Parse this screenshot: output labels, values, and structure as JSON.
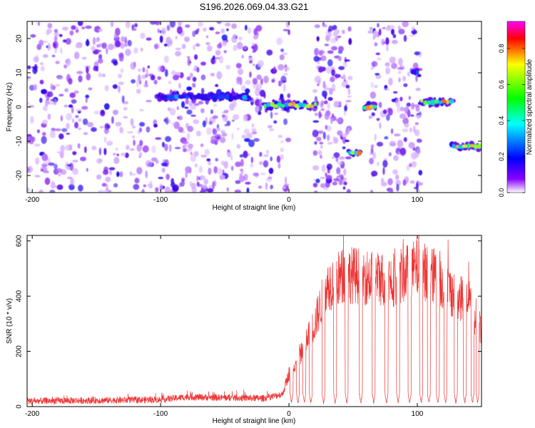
{
  "figure_title": "S196.2026.069.04.33.G21",
  "chart_data": [
    {
      "type": "heatmap",
      "title": "S196.2026.069.04.33.G21",
      "xlabel": "Height of straight line (km)",
      "ylabel": "Frequency (Hz)",
      "xlim": [
        -204,
        150
      ],
      "ylim": [
        -25,
        25
      ],
      "xticks": [
        -200,
        -100,
        0,
        100
      ],
      "yticks": [
        -20,
        -10,
        0,
        10,
        20
      ],
      "colorbar": {
        "label": "Normalized spectral amplitude",
        "range": [
          0.0,
          0.95
        ],
        "ticks": [
          0.0,
          0.2,
          0.4,
          0.6,
          0.8
        ],
        "colormap": [
          "#ff00ff",
          "#ff0000",
          "#ffff00",
          "#00ff00",
          "#00ffff",
          "#0000ff",
          "#8800ff",
          "#ffffff"
        ]
      },
      "noise_regions": [
        {
          "x_range": [
            -204,
            -18
          ],
          "density": "high",
          "freq_range": [
            -25,
            25
          ]
        },
        {
          "x_range": [
            -18,
            0
          ],
          "density": "low",
          "freq_range": [
            -25,
            25
          ]
        },
        {
          "x_range": [
            20,
            48
          ],
          "density": "medium",
          "freq_range": [
            -25,
            25
          ]
        },
        {
          "x_range": [
            63,
            103
          ],
          "density": "medium",
          "freq_range": [
            -25,
            25
          ]
        }
      ],
      "features": [
        {
          "x_range": [
            -103,
            -30
          ],
          "freq": 3,
          "amplitude": 0.5
        },
        {
          "x_range": [
            -20,
            22
          ],
          "freq": 0.5,
          "amplitude": 0.85
        },
        {
          "x_range": [
            46,
            56
          ],
          "freq": -13.5,
          "amplitude": 0.85
        },
        {
          "x_range": [
            58,
            68
          ],
          "freq": 0,
          "amplitude": 0.9
        },
        {
          "x_range": [
            96,
            101
          ],
          "freq": 10,
          "amplitude": 0.5
        },
        {
          "x_range": [
            102,
            128
          ],
          "freq": 1.5,
          "amplitude": 0.85
        },
        {
          "x_range": [
            127,
            150
          ],
          "freq": -11.5,
          "amplitude": 0.8
        }
      ]
    },
    {
      "type": "line",
      "title": "",
      "xlabel": "Height of straight line (km)",
      "ylabel": "SNR (10 * v/v)",
      "xlim": [
        -204,
        150
      ],
      "ylim": [
        0,
        620
      ],
      "xticks": [
        -200,
        -100,
        0,
        100
      ],
      "yticks": [
        0,
        200,
        400,
        600
      ],
      "color": "#ee3333",
      "profile": [
        {
          "x": -204,
          "y": 20
        },
        {
          "x": -100,
          "y": 25
        },
        {
          "x": -80,
          "y": 35
        },
        {
          "x": -20,
          "y": 30
        },
        {
          "x": -5,
          "y": 45
        },
        {
          "x": 0,
          "y": 120
        },
        {
          "x": 10,
          "y": 200
        },
        {
          "x": 20,
          "y": 300
        },
        {
          "x": 30,
          "y": 440
        },
        {
          "x": 45,
          "y": 480
        },
        {
          "x": 60,
          "y": 470
        },
        {
          "x": 80,
          "y": 460
        },
        {
          "x": 100,
          "y": 500
        },
        {
          "x": 115,
          "y": 470
        },
        {
          "x": 125,
          "y": 420
        },
        {
          "x": 140,
          "y": 380
        },
        {
          "x": 150,
          "y": 280
        }
      ],
      "dropouts_x": [
        2,
        7,
        12,
        17,
        27,
        36,
        45,
        56,
        66,
        76,
        85,
        94,
        103,
        109,
        116,
        122,
        130,
        137,
        143,
        147
      ]
    }
  ]
}
